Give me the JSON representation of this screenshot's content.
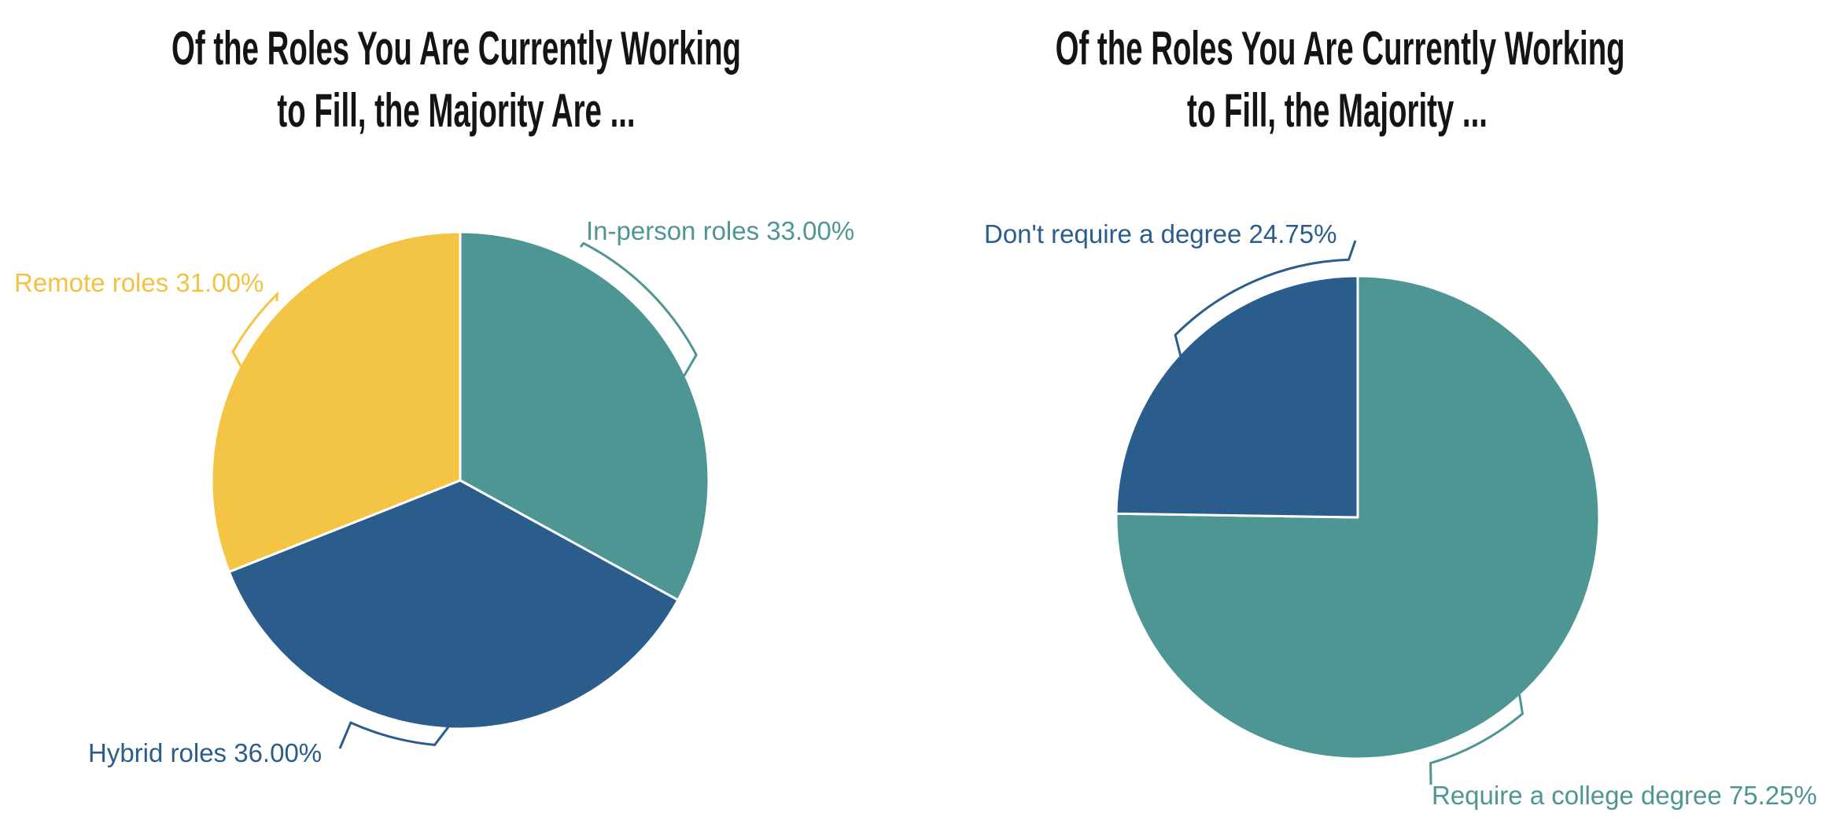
{
  "styles": {
    "background": "#FFFFFF",
    "title_color": "#141414",
    "teal": "#4E9693",
    "blue": "#2A5D8C",
    "yellow": "#F4C445",
    "slice_divider": "#FFFFFF"
  },
  "chart_data": [
    {
      "type": "pie",
      "title": "Of the Roles You Are Currently Working to Fill, the Majority Are ...",
      "title_lines": [
        "Of the Roles You Are Currently Working",
        "to Fill, the Majority Are ..."
      ],
      "direction": "clockwise",
      "start_angle_deg": 0,
      "legend": "none",
      "label_style": "outside-arc-bracket",
      "categories": [
        "In-person roles",
        "Hybrid roles",
        "Remote roles"
      ],
      "values": [
        33.0,
        36.0,
        31.0
      ],
      "slice_labels": [
        "In-person roles 33.00%",
        "Hybrid roles 36.00%",
        "Remote roles 31.00%"
      ],
      "colors": [
        "#4E9693",
        "#2A5D8C",
        "#F4C445"
      ]
    },
    {
      "type": "pie",
      "title": "Of the Roles You Are Currently Working to Fill, the Majority ...",
      "title_lines": [
        "Of the Roles You Are Currently Working",
        "to Fill, the Majority ..."
      ],
      "direction": "clockwise",
      "start_angle_deg": 0,
      "legend": "none",
      "label_style": "outside-arc-bracket",
      "categories": [
        "Require a college degree",
        "Don't require a degree"
      ],
      "values": [
        75.25,
        24.75
      ],
      "slice_labels": [
        "Require a college degree 75.25%",
        "Don't require a degree 24.75%"
      ],
      "colors": [
        "#4E9693",
        "#2A5D8C"
      ]
    }
  ]
}
